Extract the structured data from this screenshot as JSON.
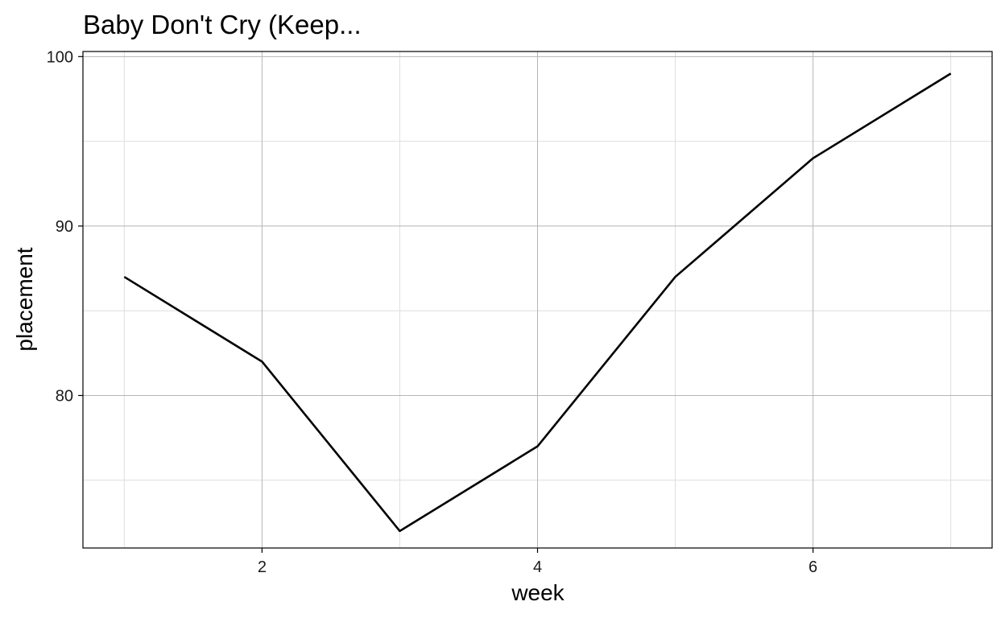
{
  "chart_data": {
    "type": "line",
    "title": "Baby Don't Cry (Keep...",
    "xlabel": "week",
    "ylabel": "placement",
    "x": [
      1,
      2,
      3,
      4,
      5,
      6,
      7
    ],
    "series": [
      {
        "values": [
          87,
          82,
          72,
          77,
          87,
          94,
          99
        ]
      }
    ],
    "xlim": [
      0.7,
      7.3
    ],
    "ylim": [
      71,
      100.3
    ],
    "xticks": [
      2,
      4,
      6
    ],
    "yticks": [
      80,
      90,
      100
    ],
    "xminor": [
      1,
      3,
      5,
      7
    ],
    "yminor": [
      75,
      85,
      95
    ],
    "grid": true,
    "line_color": "#000000"
  }
}
